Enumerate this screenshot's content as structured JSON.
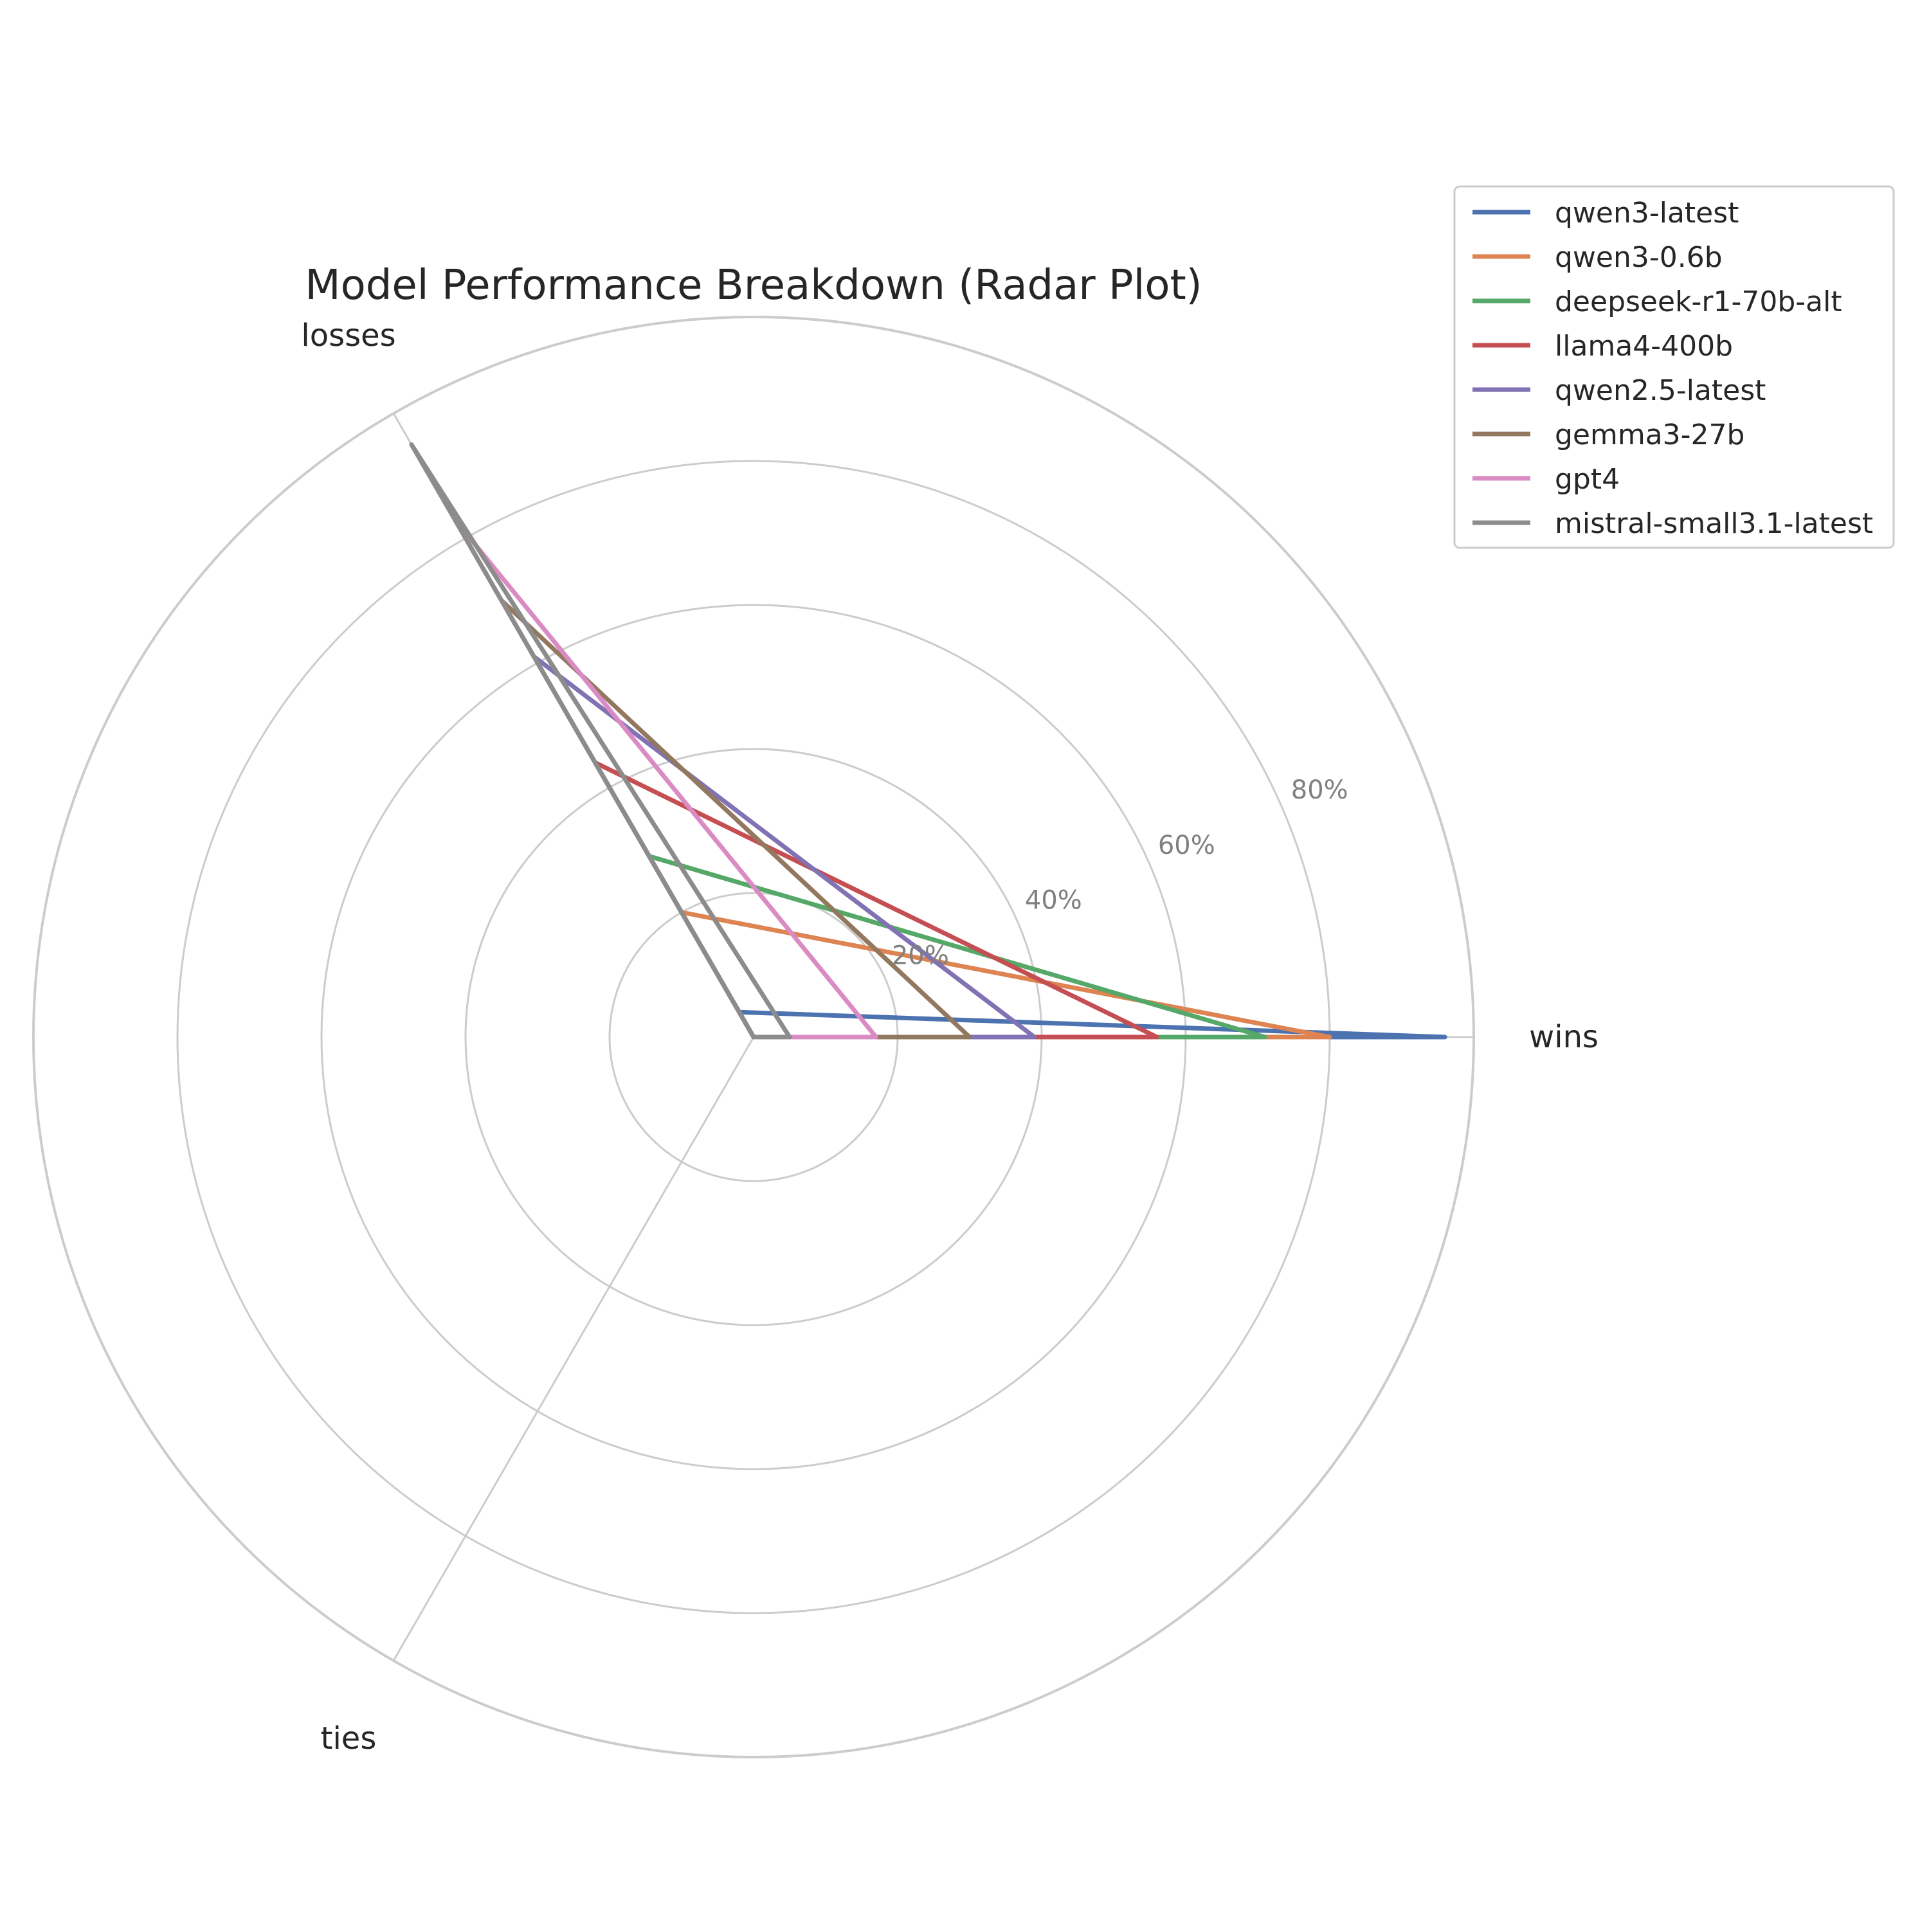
{
  "chart_data": {
    "type": "radar",
    "title": "Model Performance Breakdown (Radar Plot)",
    "axes": [
      "wins",
      "losses",
      "ties"
    ],
    "r_ticks": [
      20,
      40,
      60,
      80
    ],
    "r_tick_labels": [
      "20%",
      "40%",
      "60%",
      "80%"
    ],
    "r_max": 100,
    "unit": "%",
    "grid": true,
    "legend_position": "top-right",
    "series": [
      {
        "name": "qwen3-latest",
        "color": "#4c72b0",
        "values": [
          96,
          4,
          0
        ]
      },
      {
        "name": "qwen3-0.6b",
        "color": "#dd8452",
        "values": [
          80,
          20,
          0
        ]
      },
      {
        "name": "deepseek-r1-70b-alt",
        "color": "#55a868",
        "values": [
          71,
          29,
          0
        ]
      },
      {
        "name": "llama4-400b",
        "color": "#c44e52",
        "values": [
          56,
          44,
          0
        ]
      },
      {
        "name": "qwen2.5-latest",
        "color": "#8172b3",
        "values": [
          39,
          61,
          0
        ]
      },
      {
        "name": "gemma3-27b",
        "color": "#937860",
        "values": [
          30,
          70,
          0
        ]
      },
      {
        "name": "gpt4",
        "color": "#da8bc3",
        "values": [
          17,
          83,
          0
        ]
      },
      {
        "name": "mistral-small3.1-latest",
        "color": "#8c8c8c",
        "values": [
          5,
          95,
          0
        ]
      }
    ]
  }
}
